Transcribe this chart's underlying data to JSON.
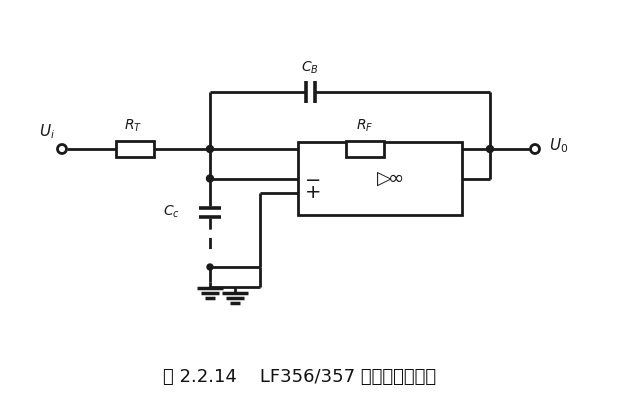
{
  "title": "图 2.2.14    LF356/357 的超前补偿电路",
  "bg_color": "#ffffff",
  "line_color": "#1a1a1a",
  "figsize": [
    6.41,
    4.07
  ],
  "dpi": 100,
  "lw": 2.0
}
